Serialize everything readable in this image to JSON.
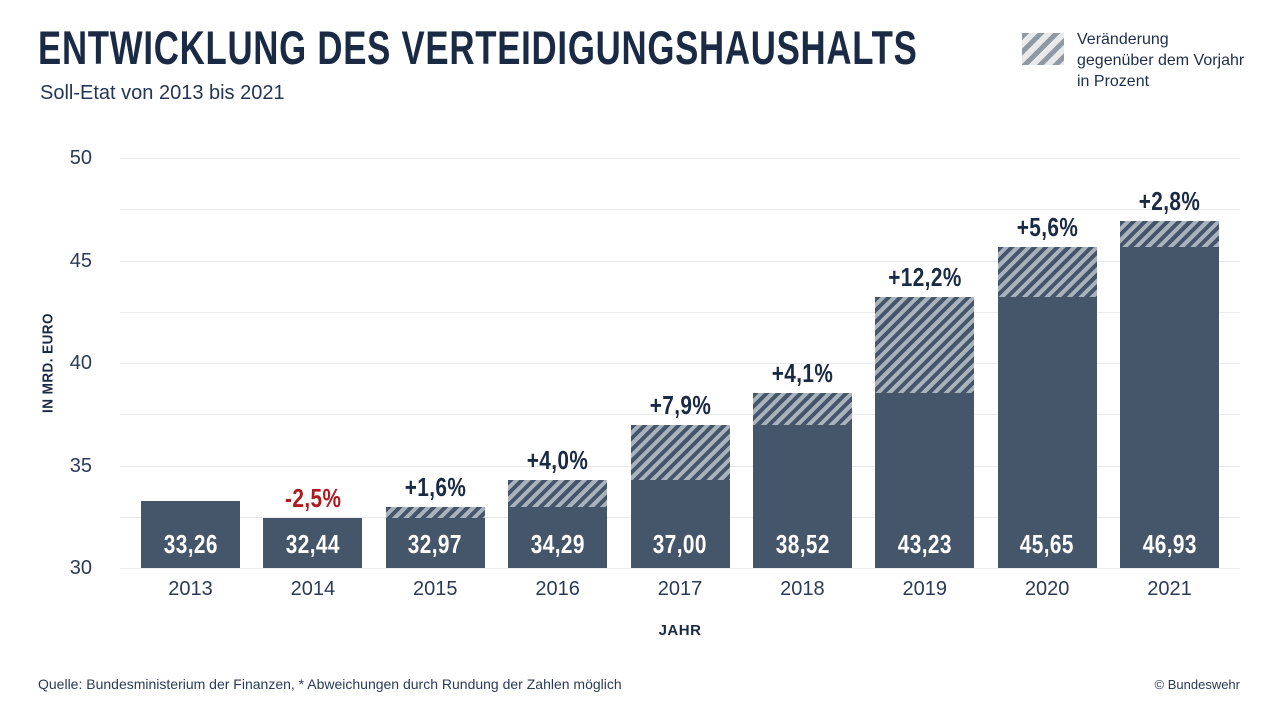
{
  "header": {
    "title": "Entwicklung des Verteidigungshaushalts",
    "subtitle": "Soll-Etat von 2013 bis 2021"
  },
  "legend": {
    "label": "Veränderung gegenüber dem Vorjahr in Prozent"
  },
  "chart_data": {
    "type": "bar",
    "title": "Entwicklung des Verteidigungshaushalts",
    "subtitle": "Soll-Etat von 2013 bis 2021",
    "categories": [
      "2013",
      "2014",
      "2015",
      "2016",
      "2017",
      "2018",
      "2019",
      "2020",
      "2021"
    ],
    "values": [
      33.26,
      32.44,
      32.97,
      34.29,
      37.0,
      38.52,
      43.23,
      45.65,
      46.93
    ],
    "value_labels": [
      "33,26",
      "32,44",
      "32,97",
      "34,29",
      "37,00",
      "38,52",
      "43,23",
      "45,65",
      "46,93"
    ],
    "pct_change_labels": [
      "",
      "-2,5%",
      "+1,6%",
      "+4,0%",
      "+7,9%",
      "+4,1%",
      "+12,2%",
      "+5,6%",
      "+2,8%"
    ],
    "hatch_meaning": "Veränderung gegenüber dem Vorjahr in Prozent",
    "xlabel": "JAHR",
    "ylabel": "IN MRD. EURO",
    "ylim": [
      30,
      50
    ],
    "ytick_step": 2.5,
    "ytick_label_step": 5,
    "grid": "on",
    "legend_position": "top-right",
    "colors": {
      "bar": "#46566a",
      "hatch_light": "#a9b3bd",
      "positive_label": "#1a2a45",
      "negative_label": "#ad1a20",
      "gridline": "#e8eaec"
    }
  },
  "footer": {
    "source": "Quelle: Bundesministerium der Finanzen, * Abweichungen durch Rundung der Zahlen möglich",
    "credit": "© Bundeswehr"
  }
}
